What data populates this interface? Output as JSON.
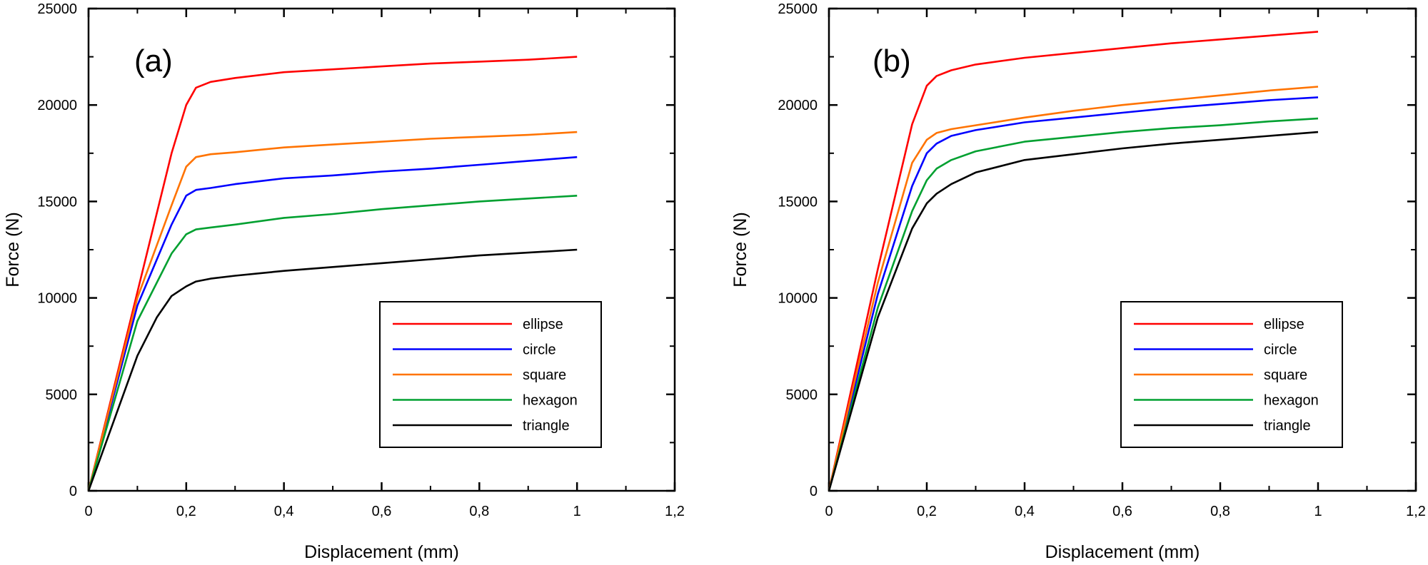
{
  "chart_data": [
    {
      "type": "line",
      "panel_label": "(a)",
      "xlabel": "Displacement (mm)",
      "ylabel": "Force (N)",
      "xlim": [
        0,
        1.2
      ],
      "ylim": [
        0,
        25000
      ],
      "xticks": [
        "0",
        "0,2",
        "0,4",
        "0,6",
        "0,8",
        "1",
        "1,2"
      ],
      "yticks": [
        "0",
        "5000",
        "10000",
        "15000",
        "20000",
        "25000"
      ],
      "legend_position": "lower-right",
      "series": [
        {
          "name": "ellipse",
          "color": "#ff0000",
          "x": [
            0,
            0.1,
            0.17,
            0.2,
            0.22,
            0.25,
            0.3,
            0.4,
            0.5,
            0.6,
            0.7,
            0.8,
            0.9,
            1.0
          ],
          "y": [
            0,
            10300,
            17500,
            20000,
            20900,
            21200,
            21400,
            21700,
            21850,
            22000,
            22150,
            22250,
            22350,
            22500
          ]
        },
        {
          "name": "circle",
          "color": "#0000ff",
          "x": [
            0,
            0.1,
            0.17,
            0.2,
            0.22,
            0.25,
            0.3,
            0.4,
            0.5,
            0.6,
            0.7,
            0.8,
            0.9,
            1.0
          ],
          "y": [
            0,
            9600,
            13800,
            15300,
            15600,
            15700,
            15900,
            16200,
            16350,
            16550,
            16700,
            16900,
            17100,
            17300
          ]
        },
        {
          "name": "square",
          "color": "#ff7300",
          "x": [
            0,
            0.1,
            0.17,
            0.2,
            0.22,
            0.25,
            0.3,
            0.4,
            0.5,
            0.6,
            0.7,
            0.8,
            0.9,
            1.0
          ],
          "y": [
            0,
            10000,
            14800,
            16800,
            17300,
            17450,
            17550,
            17800,
            17950,
            18100,
            18250,
            18350,
            18450,
            18600
          ]
        },
        {
          "name": "hexagon",
          "color": "#00a030",
          "x": [
            0,
            0.1,
            0.17,
            0.2,
            0.22,
            0.25,
            0.3,
            0.4,
            0.5,
            0.6,
            0.7,
            0.8,
            0.9,
            1.0
          ],
          "y": [
            0,
            8800,
            12300,
            13300,
            13550,
            13650,
            13800,
            14150,
            14350,
            14600,
            14800,
            15000,
            15150,
            15300
          ]
        },
        {
          "name": "triangle",
          "color": "#000000",
          "x": [
            0,
            0.1,
            0.14,
            0.17,
            0.2,
            0.22,
            0.25,
            0.3,
            0.4,
            0.5,
            0.6,
            0.7,
            0.8,
            0.9,
            1.0
          ],
          "y": [
            0,
            7000,
            9000,
            10100,
            10600,
            10850,
            11000,
            11150,
            11400,
            11600,
            11800,
            12000,
            12200,
            12350,
            12500
          ]
        }
      ]
    },
    {
      "type": "line",
      "panel_label": "(b)",
      "xlabel": "Displacement (mm)",
      "ylabel": "Force (N)",
      "xlim": [
        0,
        1.2
      ],
      "ylim": [
        0,
        25000
      ],
      "xticks": [
        "0",
        "0,2",
        "0,4",
        "0,6",
        "0,8",
        "1",
        "1,2"
      ],
      "yticks": [
        "0",
        "5000",
        "10000",
        "15000",
        "20000",
        "25000"
      ],
      "legend_position": "lower-right",
      "series": [
        {
          "name": "ellipse",
          "color": "#ff0000",
          "x": [
            0,
            0.1,
            0.17,
            0.2,
            0.22,
            0.25,
            0.3,
            0.4,
            0.5,
            0.6,
            0.7,
            0.8,
            0.9,
            1.0
          ],
          "y": [
            0,
            11500,
            19000,
            21000,
            21500,
            21800,
            22100,
            22450,
            22700,
            22950,
            23200,
            23400,
            23600,
            23800
          ]
        },
        {
          "name": "circle",
          "color": "#0000ff",
          "x": [
            0,
            0.1,
            0.17,
            0.2,
            0.22,
            0.25,
            0.3,
            0.4,
            0.5,
            0.6,
            0.7,
            0.8,
            0.9,
            1.0
          ],
          "y": [
            0,
            10200,
            15800,
            17500,
            18000,
            18400,
            18700,
            19100,
            19350,
            19600,
            19850,
            20050,
            20250,
            20400
          ]
        },
        {
          "name": "square",
          "color": "#ff7300",
          "x": [
            0,
            0.1,
            0.17,
            0.2,
            0.22,
            0.25,
            0.3,
            0.4,
            0.5,
            0.6,
            0.7,
            0.8,
            0.9,
            1.0
          ],
          "y": [
            0,
            10800,
            17000,
            18200,
            18550,
            18750,
            18950,
            19350,
            19700,
            20000,
            20250,
            20500,
            20750,
            20950
          ]
        },
        {
          "name": "hexagon",
          "color": "#00a030",
          "x": [
            0,
            0.1,
            0.17,
            0.2,
            0.22,
            0.25,
            0.3,
            0.4,
            0.5,
            0.6,
            0.7,
            0.8,
            0.9,
            1.0
          ],
          "y": [
            0,
            9500,
            14500,
            16100,
            16700,
            17150,
            17600,
            18100,
            18350,
            18600,
            18800,
            18950,
            19150,
            19300
          ]
        },
        {
          "name": "triangle",
          "color": "#000000",
          "x": [
            0,
            0.1,
            0.17,
            0.2,
            0.22,
            0.25,
            0.3,
            0.4,
            0.5,
            0.6,
            0.7,
            0.8,
            0.9,
            1.0
          ],
          "y": [
            0,
            9000,
            13600,
            14900,
            15400,
            15900,
            16500,
            17150,
            17450,
            17750,
            18000,
            18200,
            18400,
            18600
          ]
        }
      ]
    }
  ]
}
